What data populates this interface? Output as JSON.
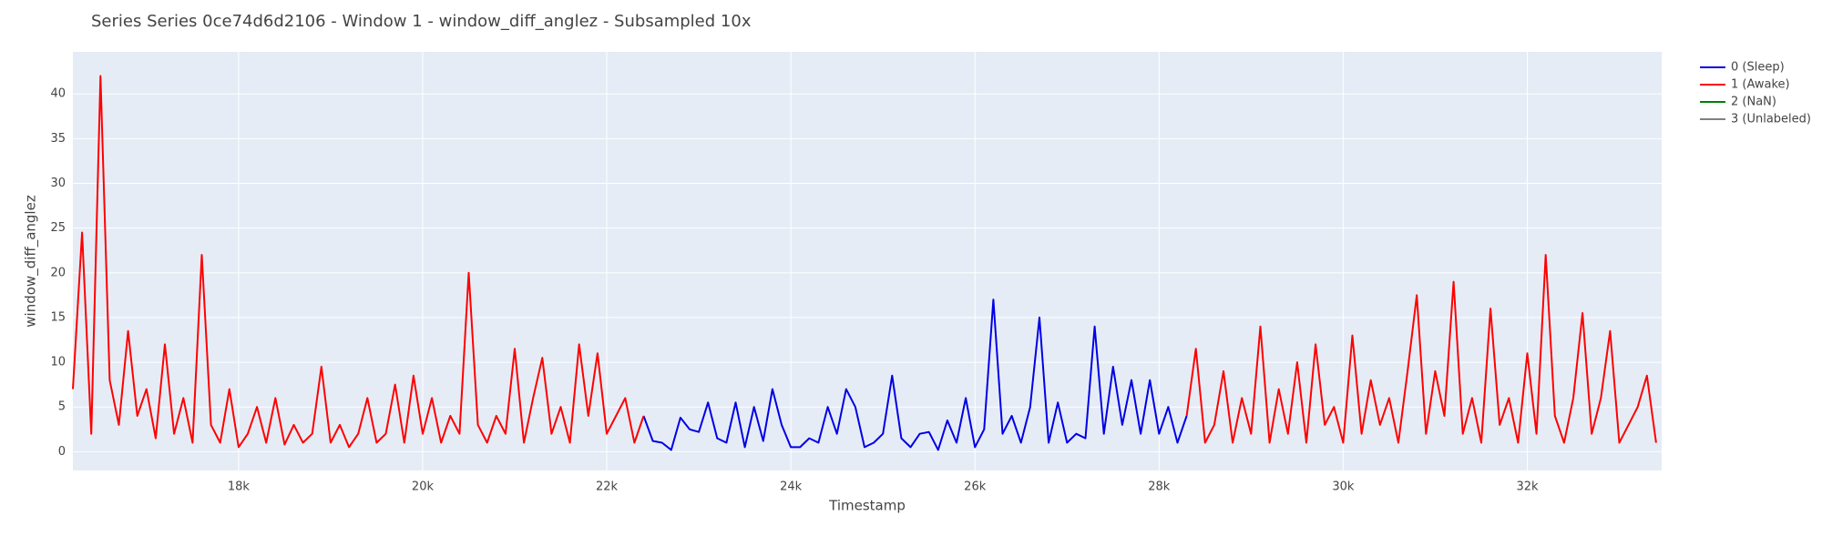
{
  "chart_data": {
    "type": "line",
    "title": "Series Series 0ce74d6d2106 - Window 1 - window_diff_anglez - Subsampled 10x",
    "x_label": "Timestamp",
    "y_label": "window_diff_anglez",
    "xlim": [
      16200,
      33460
    ],
    "ylim": [
      -2.1,
      44.7
    ],
    "xticks": [
      {
        "value": 18000,
        "label": "18k"
      },
      {
        "value": 20000,
        "label": "20k"
      },
      {
        "value": 22000,
        "label": "22k"
      },
      {
        "value": 24000,
        "label": "24k"
      },
      {
        "value": 26000,
        "label": "26k"
      },
      {
        "value": 28000,
        "label": "28k"
      },
      {
        "value": 30000,
        "label": "30k"
      },
      {
        "value": 32000,
        "label": "32k"
      }
    ],
    "yticks": [
      0,
      5,
      10,
      15,
      20,
      25,
      30,
      35,
      40
    ],
    "grid": true,
    "series": [
      {
        "name": "0 (Sleep)",
        "color": "#0000e6",
        "x": [
          22400,
          22500,
          22600,
          22700,
          22800,
          22900,
          23000,
          23100,
          23200,
          23300,
          23400,
          23500,
          23600,
          23700,
          23800,
          23900,
          24000,
          24100,
          24200,
          24300,
          24400,
          24500,
          24600,
          24700,
          24800,
          24900,
          25000,
          25100,
          25200,
          25300,
          25400,
          25500,
          25600,
          25700,
          25800,
          25900,
          26000,
          26100,
          26200,
          26300,
          26400,
          26500,
          26600,
          26700,
          26800,
          26900,
          27000,
          27100,
          27200,
          27300,
          27400,
          27500,
          27600,
          27700,
          27800,
          27900,
          28000,
          28100,
          28200,
          28300
        ],
        "values": [
          4,
          1.2,
          1,
          0.2,
          3.8,
          2.5,
          2.2,
          5.5,
          1.5,
          1,
          5.5,
          0.5,
          5,
          1.2,
          7,
          3,
          0.5,
          0.5,
          1.5,
          1,
          5,
          2,
          7,
          5,
          0.5,
          1,
          2,
          8.5,
          1.5,
          0.5,
          2,
          2.2,
          0.2,
          3.5,
          1,
          6,
          0.5,
          2.5,
          17,
          2,
          4,
          1,
          5,
          15,
          1,
          5.5,
          1,
          2,
          1.5,
          14,
          2,
          9.5,
          3,
          8,
          2,
          8,
          2,
          5,
          1,
          4
        ]
      },
      {
        "name": "1 (Awake)",
        "color": "#ff0000",
        "x": [
          16200,
          16300,
          16400,
          16500,
          16600,
          16700,
          16800,
          16900,
          17000,
          17100,
          17200,
          17300,
          17400,
          17500,
          17600,
          17700,
          17800,
          17900,
          18000,
          18100,
          18200,
          18300,
          18400,
          18500,
          18600,
          18700,
          18800,
          18900,
          19000,
          19100,
          19200,
          19300,
          19400,
          19500,
          19600,
          19700,
          19800,
          19900,
          20000,
          20100,
          20200,
          20300,
          20400,
          20500,
          20600,
          20700,
          20800,
          20900,
          21000,
          21100,
          21200,
          21300,
          21400,
          21500,
          21600,
          21700,
          21800,
          21900,
          22000,
          22100,
          22200,
          22300,
          22400,
          22500,
          28300,
          28400,
          28500,
          28600,
          28700,
          28800,
          28900,
          29000,
          29100,
          29200,
          29300,
          29400,
          29500,
          29600,
          29700,
          29800,
          29900,
          30000,
          30100,
          30200,
          30300,
          30400,
          30500,
          30600,
          30700,
          30800,
          30900,
          31000,
          31100,
          31200,
          31300,
          31400,
          31500,
          31600,
          31700,
          31800,
          31900,
          32000,
          32100,
          32200,
          32300,
          32400,
          32500,
          32600,
          32700,
          32800,
          32900,
          33000,
          33100,
          33200,
          33300,
          33400
        ],
        "values": [
          7,
          24.5,
          2,
          42,
          8,
          3,
          13.5,
          4,
          7,
          1.5,
          12,
          2,
          6,
          1,
          22,
          3,
          1,
          7,
          0.5,
          2,
          5,
          1,
          6,
          0.8,
          3,
          1,
          2,
          9.5,
          1,
          3,
          0.5,
          2,
          6,
          1,
          2,
          7.5,
          1,
          8.5,
          2,
          6,
          1,
          4,
          2,
          20,
          3,
          1,
          4,
          2,
          11.5,
          1,
          6,
          10.5,
          2,
          5,
          1,
          12,
          4,
          11,
          2,
          4,
          6,
          1,
          4,
          null,
          4,
          11.5,
          1,
          3,
          9,
          1,
          6,
          2,
          14,
          1,
          7,
          2,
          10,
          1,
          12,
          3,
          5,
          1,
          13,
          2,
          8,
          3,
          6,
          1,
          9,
          17.5,
          2,
          9,
          4,
          19,
          2,
          6,
          1,
          16,
          3,
          6,
          1,
          11,
          2,
          22,
          4,
          1,
          6,
          15.5,
          2,
          6,
          13.5,
          1,
          3,
          5,
          8.5,
          1
        ]
      },
      {
        "name": "2 (NaN)",
        "color": "#008000",
        "x": [],
        "values": []
      },
      {
        "name": "3 (Unlabeled)",
        "color": "#808080",
        "x": [],
        "values": []
      }
    ]
  }
}
